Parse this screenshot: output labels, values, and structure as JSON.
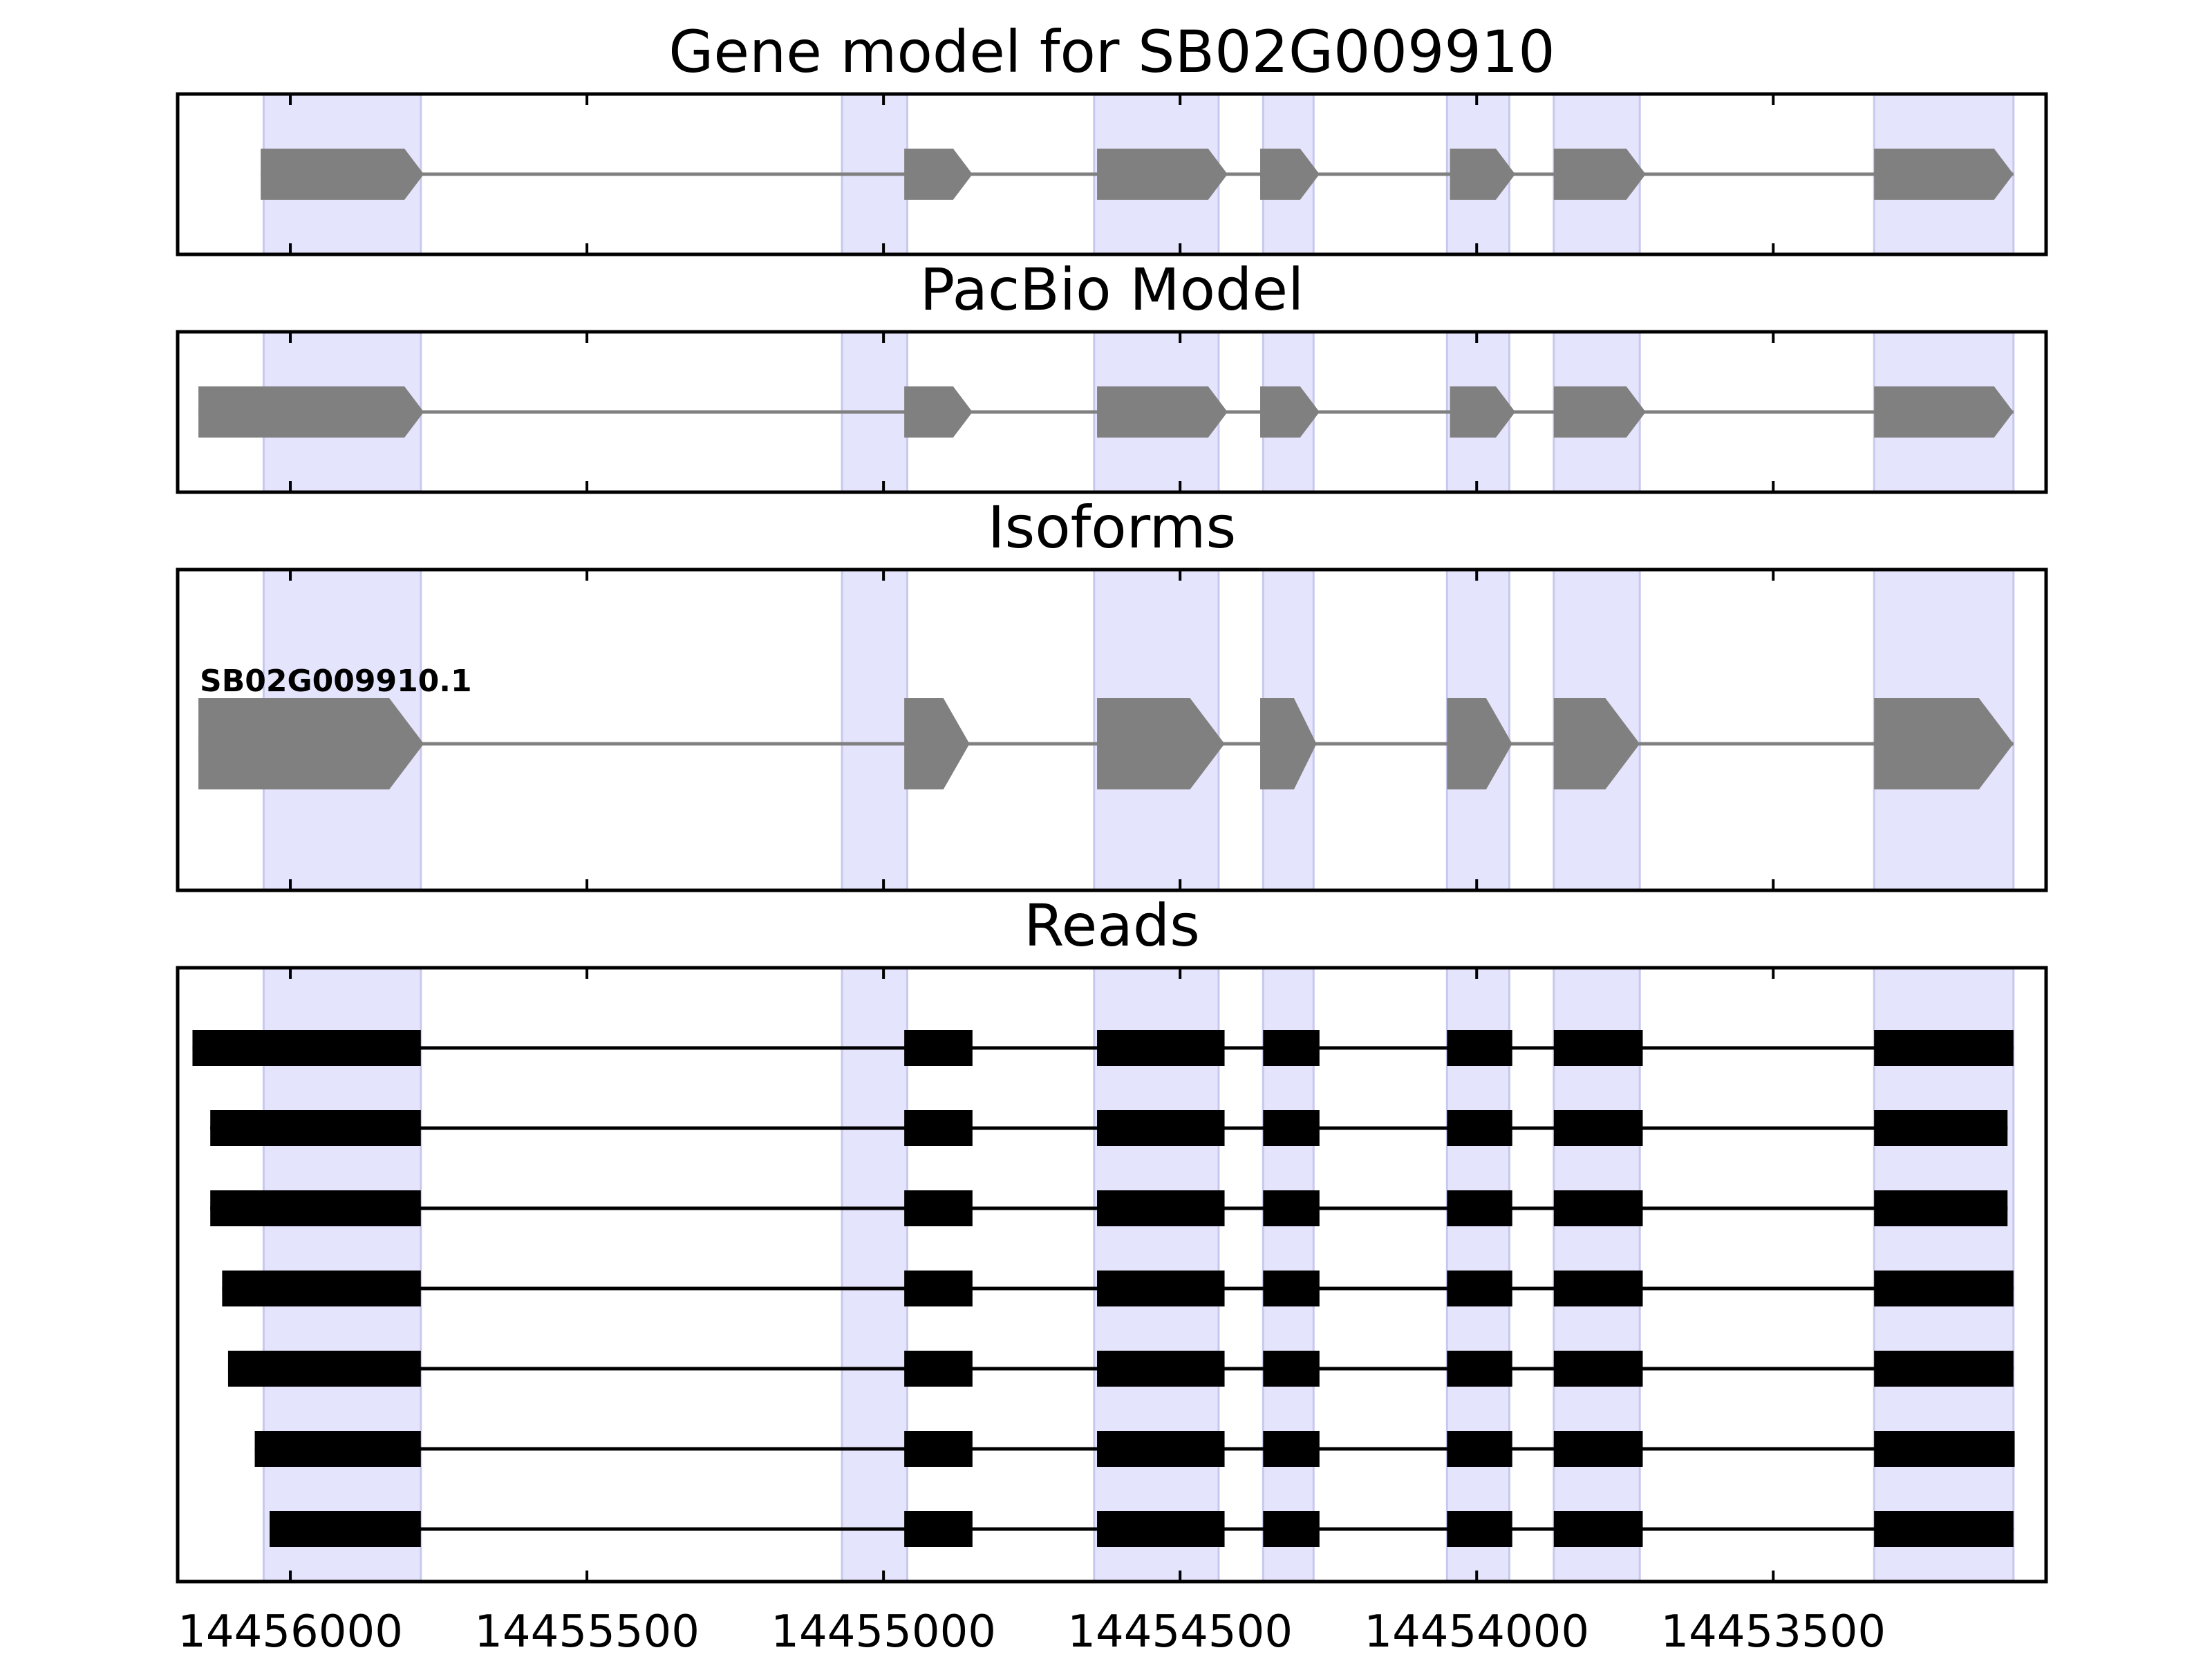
{
  "chart_data": {
    "type": "gene-structure",
    "title": "Gene model for SB02G009910",
    "x_axis": {
      "direction": "reversed",
      "xlim": [
        14456190,
        14453040
      ],
      "ticks": [
        14456000,
        14455500,
        14455000,
        14454500,
        14454000,
        14453500
      ],
      "tick_labels": [
        "14456000",
        "14455500",
        "14455000",
        "14454500",
        "14454000",
        "14453500"
      ]
    },
    "shaded_exon_regions": [
      [
        14456045,
        14455780
      ],
      [
        14455070,
        14454960
      ],
      [
        14454645,
        14454435
      ],
      [
        14454360,
        14454275
      ],
      [
        14454050,
        14453945
      ],
      [
        14453870,
        14453725
      ],
      [
        14453330,
        14453095
      ]
    ],
    "colors": {
      "shade": "#e4e4fc",
      "shade_edge": "#c8c8ee",
      "model": "#808080",
      "intron": "#808080",
      "read": "#000000"
    },
    "panels": [
      {
        "title": "Gene model for SB02G009910",
        "kind": "model",
        "tracks": [
          {
            "label": "",
            "exons": [
              [
                14456050,
                14455775
              ],
              [
                14454965,
                14454850
              ],
              [
                14454640,
                14454420
              ],
              [
                14454365,
                14454265
              ],
              [
                14454045,
                14453935
              ],
              [
                14453870,
                14453715
              ],
              [
                14453330,
                14453095
              ]
            ]
          }
        ]
      },
      {
        "title": "PacBio Model",
        "kind": "model",
        "tracks": [
          {
            "label": "",
            "exons": [
              [
                14456155,
                14455775
              ],
              [
                14454965,
                14454850
              ],
              [
                14454640,
                14454420
              ],
              [
                14454365,
                14454265
              ],
              [
                14454045,
                14453935
              ],
              [
                14453870,
                14453715
              ],
              [
                14453330,
                14453095
              ]
            ]
          }
        ]
      },
      {
        "title": "Isoforms",
        "kind": "model",
        "tracks": [
          {
            "label": "SB02G009910.1",
            "exons": [
              [
                14456155,
                14455775
              ],
              [
                14454965,
                14454855
              ],
              [
                14454640,
                14454425
              ],
              [
                14454365,
                14454270
              ],
              [
                14454050,
                14453940
              ],
              [
                14453870,
                14453725
              ],
              [
                14453330,
                14453095
              ]
            ]
          }
        ]
      },
      {
        "title": "Reads",
        "kind": "reads",
        "tracks": [
          {
            "label": "",
            "exons": [
              [
                14456165,
                14455780
              ],
              [
                14454965,
                14454850
              ],
              [
                14454640,
                14454425
              ],
              [
                14454360,
                14454265
              ],
              [
                14454050,
                14453940
              ],
              [
                14453870,
                14453720
              ],
              [
                14453330,
                14453095
              ]
            ]
          },
          {
            "label": "",
            "exons": [
              [
                14456135,
                14455780
              ],
              [
                14454965,
                14454850
              ],
              [
                14454640,
                14454425
              ],
              [
                14454360,
                14454265
              ],
              [
                14454050,
                14453940
              ],
              [
                14453870,
                14453720
              ],
              [
                14453330,
                14453105
              ]
            ]
          },
          {
            "label": "",
            "exons": [
              [
                14456135,
                14455780
              ],
              [
                14454965,
                14454850
              ],
              [
                14454640,
                14454425
              ],
              [
                14454360,
                14454265
              ],
              [
                14454050,
                14453940
              ],
              [
                14453870,
                14453720
              ],
              [
                14453330,
                14453105
              ]
            ]
          },
          {
            "label": "",
            "exons": [
              [
                14456115,
                14455780
              ],
              [
                14454965,
                14454850
              ],
              [
                14454640,
                14454425
              ],
              [
                14454360,
                14454265
              ],
              [
                14454050,
                14453940
              ],
              [
                14453870,
                14453720
              ],
              [
                14453330,
                14453095
              ]
            ]
          },
          {
            "label": "",
            "exons": [
              [
                14456105,
                14455780
              ],
              [
                14454965,
                14454850
              ],
              [
                14454640,
                14454425
              ],
              [
                14454360,
                14454265
              ],
              [
                14454050,
                14453940
              ],
              [
                14453870,
                14453720
              ],
              [
                14453330,
                14453095
              ]
            ]
          },
          {
            "label": "",
            "exons": [
              [
                14456060,
                14455780
              ],
              [
                14454965,
                14454850
              ],
              [
                14454640,
                14454425
              ],
              [
                14454360,
                14454265
              ],
              [
                14454050,
                14453940
              ],
              [
                14453870,
                14453720
              ],
              [
                14453330,
                14453093
              ]
            ]
          },
          {
            "label": "",
            "exons": [
              [
                14456035,
                14455780
              ],
              [
                14454965,
                14454850
              ],
              [
                14454640,
                14454425
              ],
              [
                14454360,
                14454265
              ],
              [
                14454050,
                14453940
              ],
              [
                14453870,
                14453720
              ],
              [
                14453330,
                14453095
              ]
            ]
          }
        ]
      }
    ]
  }
}
